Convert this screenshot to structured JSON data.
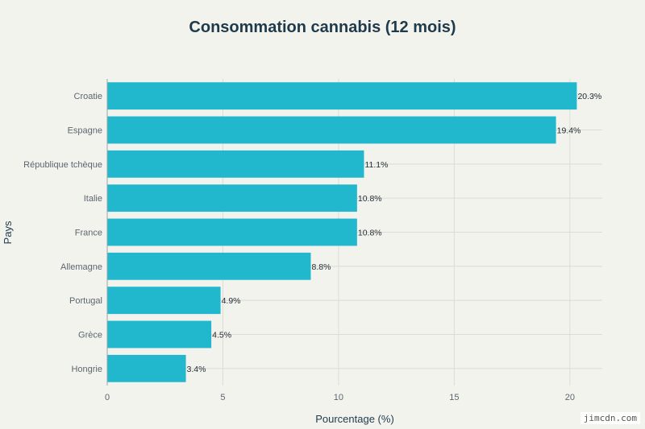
{
  "chart_data": {
    "type": "bar",
    "orientation": "horizontal",
    "title": "Consommation cannabis (12 mois)",
    "xlabel": "Pourcentage (%)",
    "ylabel": "Pays",
    "categories": [
      "Croatie",
      "Espagne",
      "République tchèque",
      "Italie",
      "France",
      "Allemagne",
      "Portugal",
      "Grèce",
      "Hongrie"
    ],
    "values": [
      20.3,
      19.4,
      11.1,
      10.8,
      10.8,
      8.8,
      4.9,
      4.5,
      3.4
    ],
    "data_labels": [
      "20.3%",
      "19.4%",
      "11.1%",
      "10.8%",
      "10.8%",
      "8.8%",
      "4.9%",
      "4.5%",
      "3.4%"
    ],
    "xlim": [
      0,
      21.4
    ],
    "xticks": [
      0,
      5,
      10,
      15,
      20
    ],
    "xtick_labels": [
      "0",
      "5",
      "10",
      "15",
      "20"
    ],
    "grid": true,
    "bar_color": "#21b8cd"
  },
  "watermark": "jimcdn.com"
}
